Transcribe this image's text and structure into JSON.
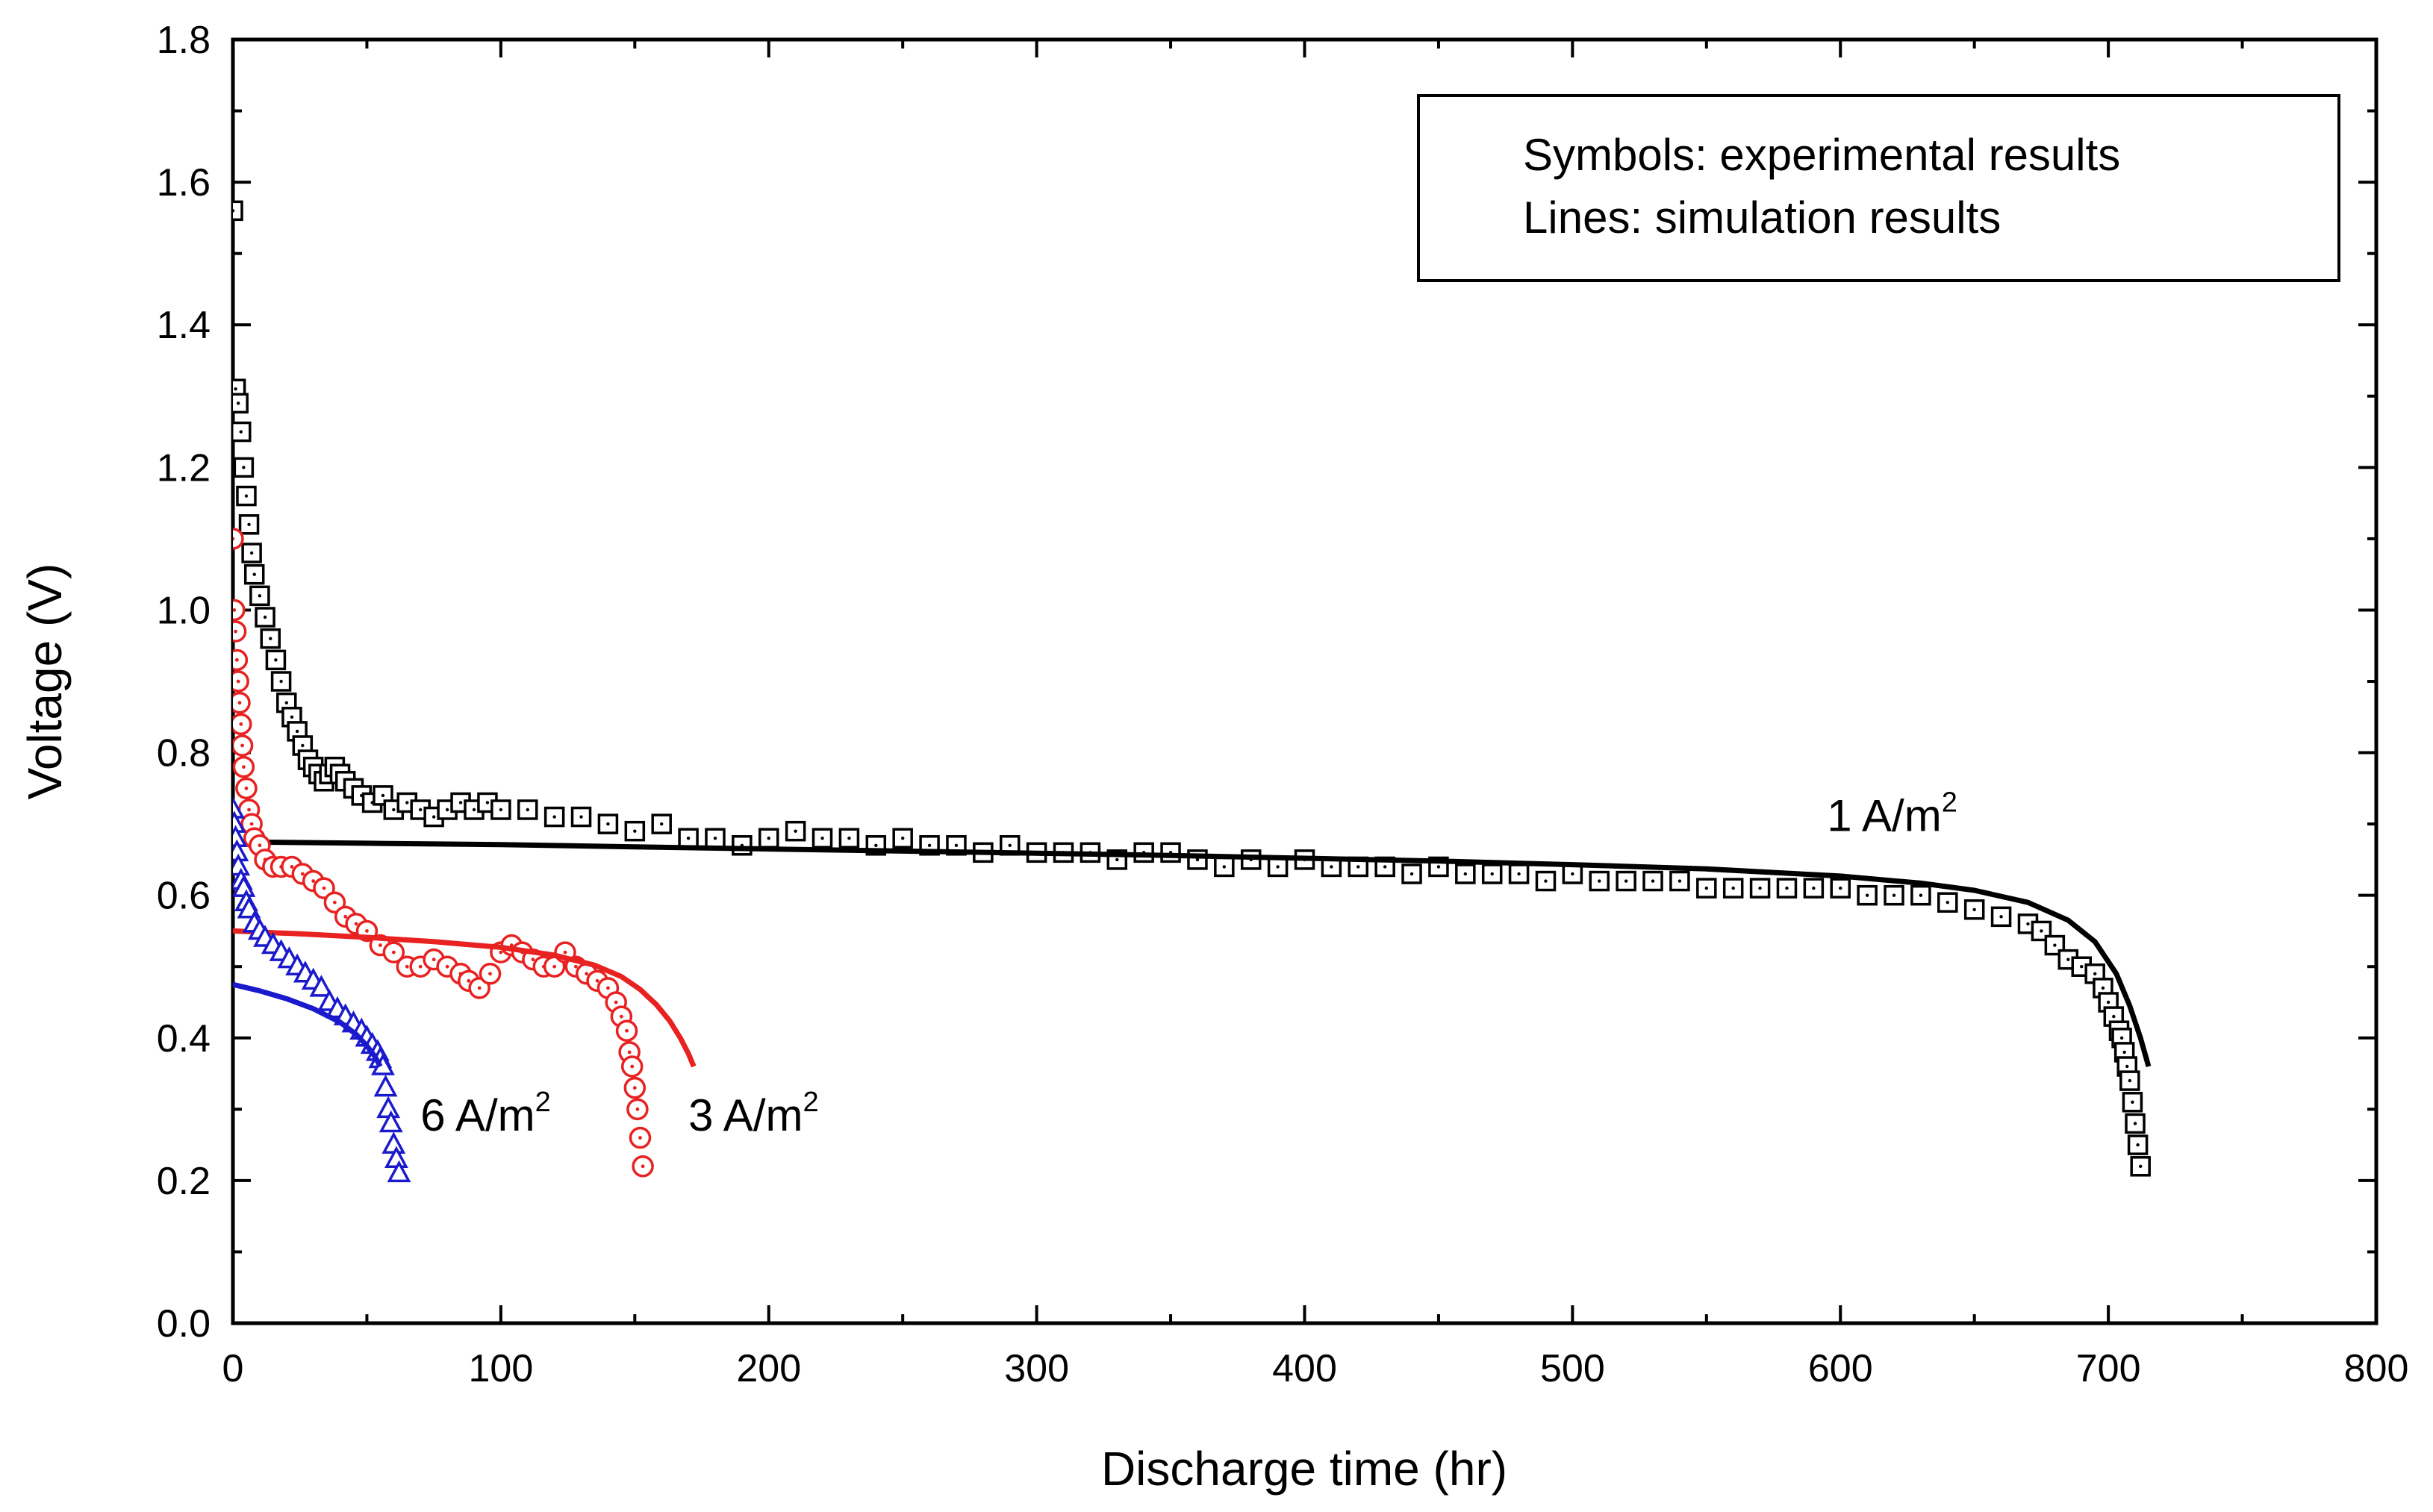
{
  "chart_data": {
    "type": "line",
    "xlabel": "Discharge time (hr)",
    "ylabel": "Voltage (V)",
    "xlim": [
      0,
      800
    ],
    "ylim": [
      0.0,
      1.8
    ],
    "x_ticks": [
      0,
      100,
      200,
      300,
      400,
      500,
      600,
      700,
      800
    ],
    "x_tick_labels": [
      "0",
      "100",
      "200",
      "300",
      "400",
      "500",
      "600",
      "700",
      "800"
    ],
    "y_ticks": [
      0.0,
      0.2,
      0.4,
      0.6,
      0.8,
      1.0,
      1.2,
      1.4,
      1.6,
      1.8
    ],
    "y_tick_labels": [
      "0.0",
      "0.2",
      "0.4",
      "0.6",
      "0.8",
      "1.0",
      "1.2",
      "1.4",
      "1.6",
      "1.8"
    ],
    "legend": {
      "position": "top-right",
      "lines": [
        "Symbols: experimental results",
        "Lines: simulation results"
      ]
    },
    "series_labels": [
      {
        "text": "1 A/m",
        "sup": "2",
        "at": [
          595,
          0.69
        ],
        "color": "#000000"
      },
      {
        "text": "3 A/m",
        "sup": "2",
        "at": [
          170,
          0.27
        ],
        "color": "#000000"
      },
      {
        "text": "6 A/m",
        "sup": "2",
        "at": [
          70,
          0.27
        ],
        "color": "#000000"
      }
    ],
    "series": [
      {
        "name": "1 A/m2 experimental",
        "kind": "symbols",
        "marker": "square",
        "color": "#000000",
        "x": [
          0,
          1,
          2,
          3,
          4,
          5,
          6,
          7,
          8,
          10,
          12,
          14,
          16,
          18,
          20,
          22,
          24,
          26,
          28,
          30,
          32,
          34,
          36,
          38,
          40,
          42,
          45,
          48,
          52,
          56,
          60,
          65,
          70,
          75,
          80,
          85,
          90,
          95,
          100,
          110,
          120,
          130,
          140,
          150,
          160,
          170,
          180,
          190,
          200,
          210,
          220,
          230,
          240,
          250,
          260,
          270,
          280,
          290,
          300,
          310,
          320,
          330,
          340,
          350,
          360,
          370,
          380,
          390,
          400,
          410,
          420,
          430,
          440,
          450,
          460,
          470,
          480,
          490,
          500,
          510,
          520,
          530,
          540,
          550,
          560,
          570,
          580,
          590,
          600,
          610,
          620,
          630,
          640,
          650,
          660,
          670,
          675,
          680,
          685,
          690,
          695,
          698,
          700,
          702,
          704,
          705,
          706,
          707,
          708,
          709,
          710,
          711,
          712
        ],
        "y": [
          1.56,
          1.31,
          1.29,
          1.25,
          1.2,
          1.16,
          1.12,
          1.08,
          1.05,
          1.02,
          0.99,
          0.96,
          0.93,
          0.9,
          0.87,
          0.85,
          0.83,
          0.81,
          0.79,
          0.78,
          0.77,
          0.76,
          0.77,
          0.78,
          0.77,
          0.76,
          0.75,
          0.74,
          0.73,
          0.74,
          0.72,
          0.73,
          0.72,
          0.71,
          0.72,
          0.73,
          0.72,
          0.73,
          0.72,
          0.72,
          0.71,
          0.71,
          0.7,
          0.69,
          0.7,
          0.68,
          0.68,
          0.67,
          0.68,
          0.69,
          0.68,
          0.68,
          0.67,
          0.68,
          0.67,
          0.67,
          0.66,
          0.67,
          0.66,
          0.66,
          0.66,
          0.65,
          0.66,
          0.66,
          0.65,
          0.64,
          0.65,
          0.64,
          0.65,
          0.64,
          0.64,
          0.64,
          0.63,
          0.64,
          0.63,
          0.63,
          0.63,
          0.62,
          0.63,
          0.62,
          0.62,
          0.62,
          0.62,
          0.61,
          0.61,
          0.61,
          0.61,
          0.61,
          0.61,
          0.6,
          0.6,
          0.6,
          0.59,
          0.58,
          0.57,
          0.56,
          0.55,
          0.53,
          0.51,
          0.5,
          0.49,
          0.47,
          0.45,
          0.43,
          0.41,
          0.4,
          0.38,
          0.36,
          0.34,
          0.31,
          0.28,
          0.25,
          0.22
        ]
      },
      {
        "name": "1 A/m2 simulation",
        "kind": "line",
        "color": "#000000",
        "x": [
          0,
          50,
          100,
          150,
          200,
          250,
          300,
          350,
          400,
          450,
          500,
          550,
          600,
          630,
          650,
          670,
          685,
          695,
          703,
          708,
          712,
          715
        ],
        "y": [
          0.675,
          0.673,
          0.671,
          0.668,
          0.665,
          0.662,
          0.659,
          0.656,
          0.652,
          0.648,
          0.643,
          0.637,
          0.627,
          0.617,
          0.607,
          0.59,
          0.565,
          0.535,
          0.49,
          0.445,
          0.4,
          0.36
        ]
      },
      {
        "name": "3 A/m2 experimental",
        "kind": "symbols",
        "marker": "circle",
        "color": "#e82121",
        "x": [
          0,
          0.5,
          1,
          1.5,
          2,
          2.5,
          3,
          3.5,
          4,
          5,
          6,
          7,
          8,
          10,
          12,
          15,
          18,
          22,
          26,
          30,
          34,
          38,
          42,
          46,
          50,
          55,
          60,
          65,
          70,
          75,
          80,
          85,
          88,
          92,
          96,
          100,
          104,
          108,
          112,
          116,
          120,
          124,
          128,
          132,
          136,
          140,
          143,
          145,
          147,
          148,
          149,
          150,
          151,
          152,
          153
        ],
        "y": [
          1.1,
          1.0,
          0.97,
          0.93,
          0.9,
          0.87,
          0.84,
          0.81,
          0.78,
          0.75,
          0.72,
          0.7,
          0.68,
          0.67,
          0.65,
          0.64,
          0.64,
          0.64,
          0.63,
          0.62,
          0.61,
          0.59,
          0.57,
          0.56,
          0.55,
          0.53,
          0.52,
          0.5,
          0.5,
          0.51,
          0.5,
          0.49,
          0.48,
          0.47,
          0.49,
          0.52,
          0.53,
          0.52,
          0.51,
          0.5,
          0.5,
          0.52,
          0.5,
          0.49,
          0.48,
          0.47,
          0.45,
          0.43,
          0.41,
          0.38,
          0.36,
          0.33,
          0.3,
          0.26,
          0.22
        ]
      },
      {
        "name": "3 A/m2 simulation",
        "kind": "line",
        "color": "#e82121",
        "x": [
          0,
          25,
          50,
          75,
          100,
          120,
          135,
          145,
          152,
          158,
          163,
          167,
          170,
          172
        ],
        "y": [
          0.55,
          0.546,
          0.541,
          0.535,
          0.527,
          0.516,
          0.502,
          0.486,
          0.468,
          0.447,
          0.424,
          0.4,
          0.378,
          0.36
        ]
      },
      {
        "name": "6 A/m2 experimental",
        "kind": "symbols",
        "marker": "triangle",
        "color": "#1a1acc",
        "x": [
          0,
          0.5,
          1,
          1.5,
          2,
          3,
          4,
          5,
          6,
          8,
          10,
          12,
          15,
          18,
          21,
          24,
          27,
          30,
          33,
          36,
          39,
          42,
          45,
          48,
          50,
          52,
          54,
          55,
          56,
          57,
          58,
          59,
          60,
          61,
          62
        ],
        "y": [
          0.72,
          0.7,
          0.68,
          0.66,
          0.64,
          0.62,
          0.61,
          0.59,
          0.58,
          0.56,
          0.55,
          0.54,
          0.53,
          0.52,
          0.51,
          0.5,
          0.49,
          0.48,
          0.47,
          0.45,
          0.44,
          0.43,
          0.42,
          0.41,
          0.4,
          0.39,
          0.38,
          0.37,
          0.36,
          0.33,
          0.3,
          0.28,
          0.25,
          0.23,
          0.21
        ]
      },
      {
        "name": "6 A/m2 simulation",
        "kind": "line",
        "color": "#1a1acc",
        "x": [
          0,
          10,
          20,
          30,
          40,
          46,
          50,
          53,
          55
        ],
        "y": [
          0.475,
          0.466,
          0.455,
          0.441,
          0.422,
          0.405,
          0.389,
          0.374,
          0.36
        ]
      }
    ]
  }
}
